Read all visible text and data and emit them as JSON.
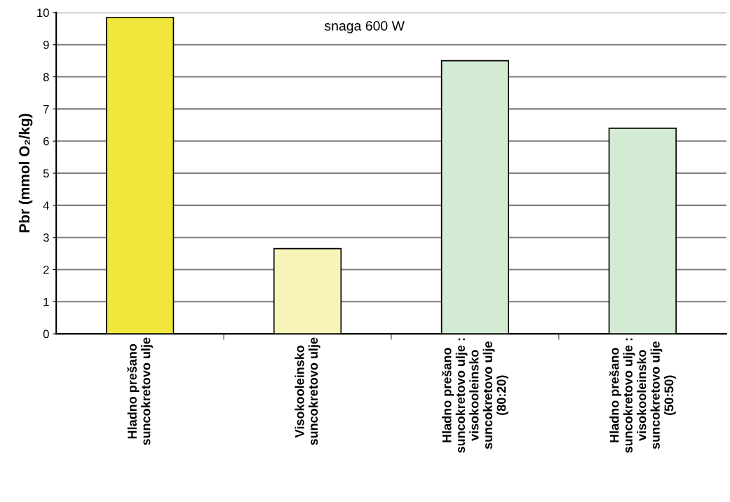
{
  "chart_data": {
    "type": "bar",
    "ylabel": "Pbr (mmol O₂/kg)",
    "categories": [
      "Hladno prešano\nsuncokretovo ulje",
      "Visokooleinsko\nsuncokretovo ulje",
      "Hladno prešano\nsuncokretovo ulje :\nvisokooleinsko\nsuncokretovo ulje\n(80:20)",
      "Hladno prešano\nsuncokretovo ulje :\nvisokooleinsko\nsuncokretovo ulje\n(50:50)"
    ],
    "values": [
      9.85,
      2.65,
      8.5,
      6.4
    ],
    "colors": [
      "#f0e63c",
      "#f6f4b8",
      "#d3ead3",
      "#d3ead3"
    ],
    "ylim": [
      0,
      10
    ],
    "yticks": [
      0,
      1,
      2,
      3,
      4,
      5,
      6,
      7,
      8,
      9,
      10
    ],
    "grid": "y",
    "annotations": [
      "snaga 600 W"
    ]
  }
}
